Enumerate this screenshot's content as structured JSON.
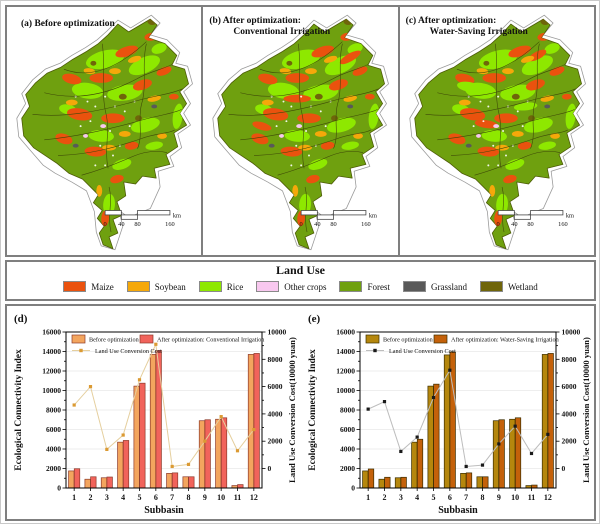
{
  "maps": {
    "panels": [
      {
        "label": "(a) Before optimization",
        "sublabel": ""
      },
      {
        "label": "(b) After optimization:",
        "sublabel": "Conventional Irrigation"
      },
      {
        "label": "(c) After optimization:",
        "sublabel": "Water-Saving Irrigation"
      }
    ],
    "scalebar": {
      "labels": [
        "0",
        "40",
        "80",
        "160"
      ],
      "unit": "km"
    }
  },
  "land_use_legend": {
    "title": "Land Use",
    "items": [
      {
        "label": "Maize",
        "color": "#EA520E"
      },
      {
        "label": "Soybean",
        "color": "#F5A80A"
      },
      {
        "label": "Rice",
        "color": "#8EE800"
      },
      {
        "label": "Other crops",
        "color": "#F8C8EF"
      },
      {
        "label": "Forest",
        "color": "#6FA00F"
      },
      {
        "label": "Grassland",
        "color": "#595959"
      },
      {
        "label": "Wetland",
        "color": "#6F650A"
      }
    ]
  },
  "chart_data": [
    {
      "panel": "(d)",
      "type": "bar",
      "categories": [
        "1",
        "2",
        "3",
        "4",
        "5",
        "6",
        "7",
        "8",
        "9",
        "10",
        "11",
        "12"
      ],
      "xlabel": "Subbasin",
      "ylabel_left": "Ecological Connectivity Index",
      "ylabel_right": "Land Use Conversion Cost(10000 yuan)",
      "ylim_left": [
        0,
        16000
      ],
      "ylim_right": [
        0,
        10000
      ],
      "yticks_left": [
        0,
        2000,
        4000,
        6000,
        8000,
        10000,
        12000,
        14000,
        16000
      ],
      "yticks_right": [
        0,
        2000,
        4000,
        6000,
        8000,
        10000
      ],
      "right_axis_zero_at_left_value": 2000,
      "grid": true,
      "legend_position": "top-left inside",
      "series": [
        {
          "name": "Before optimization",
          "type": "bar",
          "color": "#F3A55E",
          "edge": "#8E3B2B",
          "values": [
            1750,
            900,
            1050,
            4700,
            10450,
            13700,
            1500,
            1150,
            6900,
            7050,
            250,
            13700
          ]
        },
        {
          "name": "After optimization: Conventional Irrigation",
          "type": "bar",
          "color": "#F1635B",
          "edge": "#8E3B2B",
          "values": [
            1975,
            1150,
            1125,
            4875,
            10750,
            14100,
            1550,
            1150,
            7000,
            7200,
            350,
            13800
          ]
        },
        {
          "name": "Land Use Conversion Cost",
          "type": "line",
          "axis": "right",
          "color": "#E5CF9E",
          "marker_color": "#DB9A33",
          "values": [
            4650,
            6000,
            1400,
            2450,
            6500,
            9100,
            150,
            300,
            2000,
            3800,
            1300,
            2850
          ]
        }
      ]
    },
    {
      "panel": "(e)",
      "type": "bar",
      "categories": [
        "1",
        "2",
        "3",
        "4",
        "5",
        "6",
        "7",
        "8",
        "9",
        "10",
        "11",
        "12"
      ],
      "xlabel": "Subbasin",
      "ylabel_left": "Ecological Connectivity Index",
      "ylabel_right": "Land Use Conversion Cost(10000 yuan)",
      "ylim_left": [
        0,
        16000
      ],
      "ylim_right": [
        0,
        10000
      ],
      "yticks_left": [
        0,
        2000,
        4000,
        6000,
        8000,
        10000,
        12000,
        14000,
        16000
      ],
      "yticks_right": [
        0,
        2000,
        4000,
        6000,
        8000,
        10000
      ],
      "right_axis_zero_at_left_value": 2000,
      "grid": true,
      "legend_position": "top-left inside",
      "series": [
        {
          "name": "Before optimization",
          "type": "bar",
          "color": "#B5870D",
          "edge": "#3C2E00",
          "values": [
            1750,
            900,
            1050,
            4700,
            10450,
            13650,
            1500,
            1150,
            6900,
            7050,
            250,
            13700
          ]
        },
        {
          "name": "After optimization: Water-Saving Irrigation",
          "type": "bar",
          "color": "#C4610A",
          "edge": "#3C2E00",
          "values": [
            1950,
            1100,
            1100,
            5000,
            10650,
            13950,
            1550,
            1150,
            7000,
            7200,
            300,
            13800
          ]
        },
        {
          "name": "Land Use Conversion Cost",
          "type": "line",
          "axis": "right",
          "color": "#BDBDBD",
          "marker_color": "#1A1A1A",
          "values": [
            4350,
            4900,
            1250,
            2300,
            5200,
            7200,
            150,
            250,
            1800,
            3100,
            1100,
            2500
          ]
        }
      ]
    }
  ]
}
